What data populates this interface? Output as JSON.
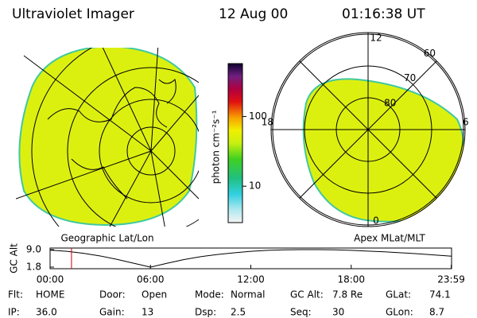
{
  "header": {
    "instrument": "Ultraviolet Imager",
    "date": "12 Aug 00",
    "time": "01:16:38 UT"
  },
  "colorbar": {
    "label": "photon cm⁻²s⁻¹",
    "log_scale": true,
    "lim": [
      3,
      575
    ],
    "ticks": [
      10,
      100
    ]
  },
  "maps": [
    {
      "caption": "Geographic Lat/Lon"
    },
    {
      "caption": "Apex MLat/MLT",
      "mlt_labels": [
        12,
        18,
        0,
        6
      ],
      "lat_labels": [
        80,
        70,
        60
      ]
    }
  ],
  "altitude_plot": {
    "ylabel": "GC Alt",
    "ylim": [
      1.8,
      9.0
    ],
    "yticks": [
      {
        "value": 9.0,
        "label": "9.0"
      },
      {
        "value": 1.8,
        "label": "1.8"
      }
    ],
    "xlim": [
      0,
      24
    ],
    "xticks": [
      {
        "value": 0,
        "label": "00:00"
      },
      {
        "value": 6,
        "label": "06:00"
      },
      {
        "value": 12,
        "label": "12:00"
      },
      {
        "value": 18,
        "label": "18:00"
      },
      {
        "value": 23.98,
        "label": "23:59"
      }
    ],
    "x": [
      0,
      1,
      2,
      3,
      4,
      5,
      6,
      7,
      8,
      9,
      10,
      11,
      12,
      13,
      14,
      15,
      16,
      17,
      18,
      19,
      20,
      21,
      22,
      23,
      24
    ],
    "y": [
      8.8,
      8.3,
      7.5,
      6.4,
      5.0,
      3.4,
      1.8,
      3.4,
      4.9,
      6.1,
      7.0,
      7.7,
      8.3,
      8.7,
      8.9,
      9.0,
      9.0,
      8.9,
      8.7,
      8.4,
      8.1,
      7.7,
      7.3,
      6.8,
      6.3
    ],
    "marker": 1.28,
    "marker_color": "#d00000"
  },
  "info": [
    [
      {
        "label": "Flt:",
        "value": "HOME"
      },
      {
        "label": "Door:",
        "value": "Open"
      },
      {
        "label": "Mode:",
        "value": "Normal"
      },
      {
        "label": "GC Alt:",
        "value": "7.8 Re"
      },
      {
        "label": "GLat:",
        "value": "74.1"
      }
    ],
    [
      {
        "label": "IP:",
        "value": "36.0"
      },
      {
        "label": "Gain:",
        "value": "13"
      },
      {
        "label": "Dsp:",
        "value": "2.5"
      },
      {
        "label": "Seq:",
        "value": "30"
      },
      {
        "label": "GLon:",
        "value": "8.7"
      }
    ]
  ]
}
